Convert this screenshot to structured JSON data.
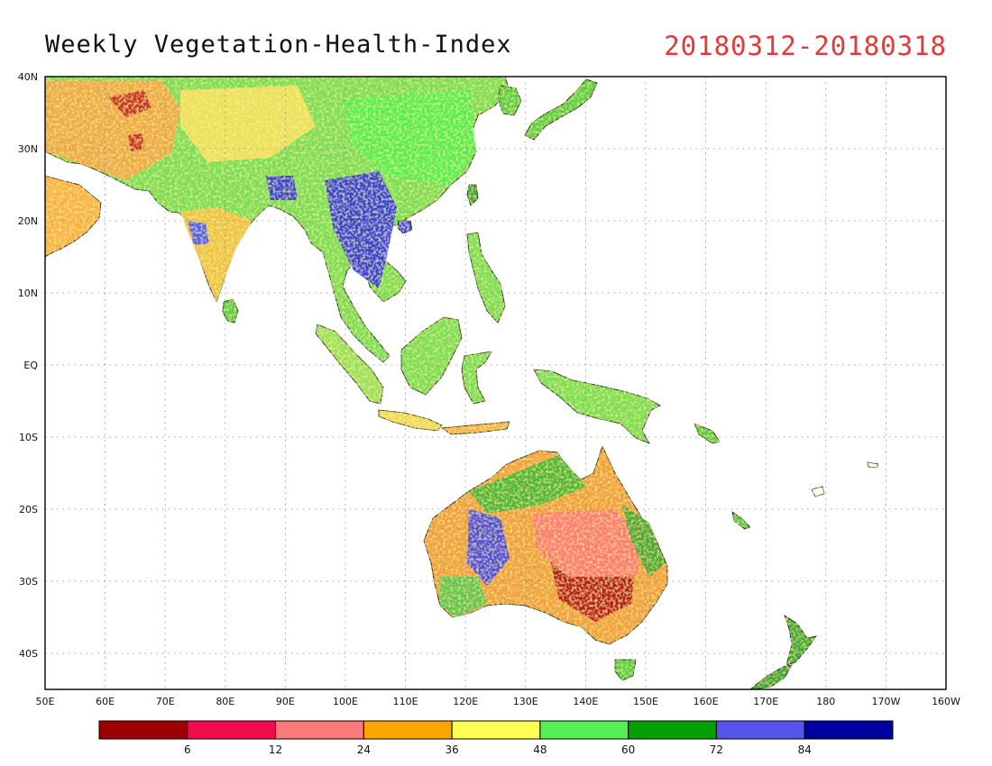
{
  "title": "Weekly Vegetation-Health-Index",
  "date_range": "20180312-20180318",
  "map": {
    "lon_range": [
      50,
      200
    ],
    "lat_range": [
      -45,
      40
    ],
    "lon_ticks": [
      {
        "lon": 50,
        "label": "50E"
      },
      {
        "lon": 60,
        "label": "60E"
      },
      {
        "lon": 70,
        "label": "70E"
      },
      {
        "lon": 80,
        "label": "80E"
      },
      {
        "lon": 90,
        "label": "90E"
      },
      {
        "lon": 100,
        "label": "100E"
      },
      {
        "lon": 110,
        "label": "110E"
      },
      {
        "lon": 120,
        "label": "120E"
      },
      {
        "lon": 130,
        "label": "130E"
      },
      {
        "lon": 140,
        "label": "140E"
      },
      {
        "lon": 150,
        "label": "150E"
      },
      {
        "lon": 160,
        "label": "160E"
      },
      {
        "lon": 170,
        "label": "170E"
      },
      {
        "lon": 180,
        "label": "180"
      },
      {
        "lon": 190,
        "label": "170W"
      },
      {
        "lon": 200,
        "label": "160W"
      }
    ],
    "lat_ticks": [
      {
        "lat": 40,
        "label": "40N"
      },
      {
        "lat": 30,
        "label": "30N"
      },
      {
        "lat": 20,
        "label": "20N"
      },
      {
        "lat": 10,
        "label": "10N"
      },
      {
        "lat": 0,
        "label": "EQ"
      },
      {
        "lat": -10,
        "label": "10S"
      },
      {
        "lat": -20,
        "label": "20S"
      },
      {
        "lat": -30,
        "label": "30S"
      },
      {
        "lat": -40,
        "label": "40S"
      }
    ]
  },
  "colorbar": {
    "colors": [
      "#9c0000",
      "#ee0c4e",
      "#fe7a7a",
      "#fea500",
      "#fefe55",
      "#55ee55",
      "#00a000",
      "#5555ee",
      "#0000a0"
    ],
    "labels": [
      "6",
      "12",
      "24",
      "36",
      "48",
      "60",
      "72",
      "84"
    ]
  }
}
